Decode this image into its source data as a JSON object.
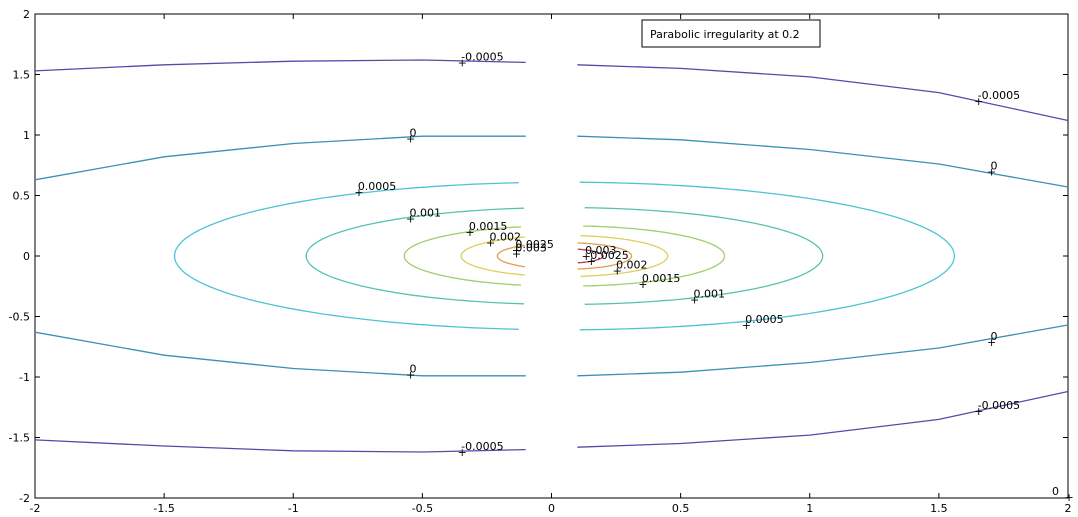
{
  "chart_data": {
    "type": "contour",
    "xlim": [
      -2,
      2
    ],
    "ylim": [
      -2,
      2
    ],
    "x_ticks": [
      "-2",
      "-1.5",
      "-1",
      "-0.5",
      "0",
      "0.5",
      "1",
      "1.5",
      "2"
    ],
    "y_ticks": [
      "2",
      "1.5",
      "1",
      "0.5",
      "0",
      "-0.5",
      "-1",
      "-1.5",
      "-2"
    ],
    "x_tick_values": [
      -2,
      -1.5,
      -1,
      -0.5,
      0,
      0.5,
      1,
      1.5,
      2
    ],
    "y_tick_values": [
      2,
      1.5,
      1,
      0.5,
      0,
      -0.5,
      -1,
      -1.5,
      -2
    ],
    "legend": "Parabolic irregularity at 0.2",
    "grid": false,
    "gap_x": [
      -0.1,
      0.1
    ],
    "open_levels": [
      {
        "level": "-0.0005",
        "color": "#5a48a8",
        "upper": [
          [
            -2,
            1.53
          ],
          [
            -1.5,
            1.58
          ],
          [
            -1,
            1.61
          ],
          [
            -0.5,
            1.62
          ],
          [
            -0.1,
            1.6
          ]
        ],
        "upper_right": [
          [
            0.1,
            1.58
          ],
          [
            0.5,
            1.55
          ],
          [
            1,
            1.48
          ],
          [
            1.5,
            1.35
          ],
          [
            2,
            1.12
          ]
        ],
        "lower": [
          [
            -2,
            -1.52
          ],
          [
            -1.5,
            -1.57
          ],
          [
            -1,
            -1.61
          ],
          [
            -0.5,
            -1.62
          ],
          [
            -0.1,
            -1.6
          ]
        ],
        "lower_right": [
          [
            0.1,
            -1.58
          ],
          [
            0.5,
            -1.55
          ],
          [
            1,
            -1.48
          ],
          [
            1.5,
            -1.35
          ],
          [
            2,
            -1.12
          ]
        ]
      },
      {
        "level": "0",
        "color": "#3d8fb5",
        "upper": [
          [
            -2,
            0.63
          ],
          [
            -1.5,
            0.82
          ],
          [
            -1,
            0.93
          ],
          [
            -0.5,
            0.99
          ],
          [
            -0.1,
            0.99
          ]
        ],
        "upper_right": [
          [
            0.1,
            0.99
          ],
          [
            0.5,
            0.96
          ],
          [
            1,
            0.88
          ],
          [
            1.5,
            0.76
          ],
          [
            2,
            0.57
          ]
        ],
        "lower": [
          [
            -2,
            -0.63
          ],
          [
            -1.5,
            -0.82
          ],
          [
            -1,
            -0.93
          ],
          [
            -0.5,
            -0.99
          ],
          [
            -0.1,
            -0.99
          ]
        ],
        "lower_right": [
          [
            0.1,
            -0.99
          ],
          [
            0.5,
            -0.96
          ],
          [
            1,
            -0.88
          ],
          [
            1.5,
            -0.76
          ],
          [
            2,
            -0.57
          ]
        ]
      }
    ],
    "closed_levels": [
      {
        "level": "0.0005",
        "color": "#4fc3d4",
        "cx": 0.05,
        "rx": 1.51,
        "ry": 0.61
      },
      {
        "level": "0.001",
        "color": "#58c2b0",
        "cx": 0.05,
        "rx": 1.0,
        "ry": 0.4
      },
      {
        "level": "0.0015",
        "color": "#9fcf6a",
        "cx": 0.05,
        "rx": 0.62,
        "ry": 0.25
      },
      {
        "level": "0.002",
        "color": "#e0cf5a",
        "cx": 0.05,
        "rx": 0.4,
        "ry": 0.17
      },
      {
        "level": "0.0025",
        "color": "#e0a04a",
        "cx": 0.05,
        "rx": 0.26,
        "ry": 0.11
      },
      {
        "level": "0.003",
        "color": "#b03a6a",
        "cx": 0.05,
        "rx": 0.15,
        "ry": 0.06
      }
    ],
    "labels": [
      {
        "text": "-0.0005",
        "x": -0.35,
        "y": 1.6
      },
      {
        "text": "-0.0005",
        "x": 1.65,
        "y": 1.28
      },
      {
        "text": "0",
        "x": -0.55,
        "y": 0.97
      },
      {
        "text": "0",
        "x": 1.7,
        "y": 0.7
      },
      {
        "text": "0.0005",
        "x": -0.75,
        "y": 0.53
      },
      {
        "text": "0.001",
        "x": -0.55,
        "y": 0.31
      },
      {
        "text": "0.0015",
        "x": -0.32,
        "y": 0.2
      },
      {
        "text": "0.002",
        "x": -0.24,
        "y": 0.11
      },
      {
        "text": "0.0025",
        "x": -0.14,
        "y": 0.05
      },
      {
        "text": "0.003",
        "x": -0.14,
        "y": 0.02
      },
      {
        "text": "0.003",
        "x": 0.13,
        "y": 0.0
      },
      {
        "text": "0.0025",
        "x": 0.15,
        "y": -0.04
      },
      {
        "text": "0.002",
        "x": 0.25,
        "y": -0.12
      },
      {
        "text": "0.0015",
        "x": 0.35,
        "y": -0.23
      },
      {
        "text": "0.001",
        "x": 0.55,
        "y": -0.36
      },
      {
        "text": "0.0005",
        "x": 0.75,
        "y": -0.57
      },
      {
        "text": "0",
        "x": 1.7,
        "y": -0.71
      },
      {
        "text": "0",
        "x": -0.55,
        "y": -0.98
      },
      {
        "text": "-0.0005",
        "x": 1.65,
        "y": -1.28
      },
      {
        "text": "-0.0005",
        "x": -0.35,
        "y": -1.62
      },
      {
        "text": "0",
        "x": 2.0,
        "y": -1.99
      }
    ]
  }
}
